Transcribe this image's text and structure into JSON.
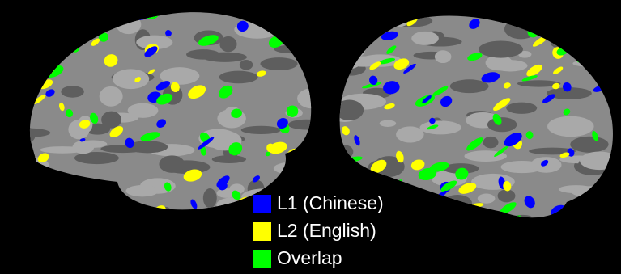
{
  "legend": {
    "items": [
      {
        "label": "L1 (Chinese)",
        "color": "#0000ff"
      },
      {
        "label": "L2 (English)",
        "color": "#ffff00"
      },
      {
        "label": "Overlap",
        "color": "#00ff00"
      }
    ]
  }
}
